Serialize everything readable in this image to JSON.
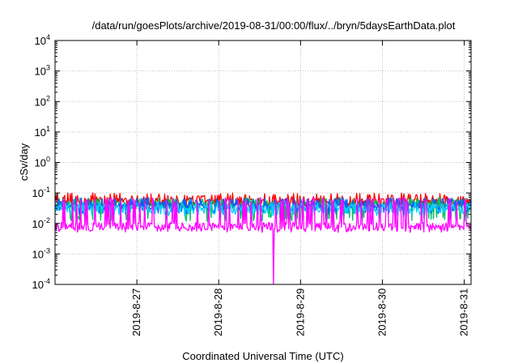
{
  "chart_data": {
    "type": "line",
    "title": "/data/run/goesPlots/archive/2019-08-31/00:00/flux/../bryn/5daysEarthData.plot",
    "xlabel": "Coordinated Universal Time (UTC)",
    "ylabel": "cSv/day",
    "y_scale": "log",
    "ylim": [
      0.0001,
      10000
    ],
    "y_ticks": [
      {
        "base": "10",
        "exp": "4"
      },
      {
        "base": "10",
        "exp": "3"
      },
      {
        "base": "10",
        "exp": "2"
      },
      {
        "base": "10",
        "exp": "1"
      },
      {
        "base": "10",
        "exp": "0"
      },
      {
        "base": "10",
        "exp": "-1"
      },
      {
        "base": "10",
        "exp": "-2"
      },
      {
        "base": "10",
        "exp": "-3"
      },
      {
        "base": "10",
        "exp": "-4"
      }
    ],
    "x_range": [
      "2019-08-26",
      "2019-08-31"
    ],
    "x_ticks": [
      "2019-8-27",
      "2019-8-28",
      "2019-8-29",
      "2019-8-30",
      "2019-8-31"
    ],
    "grid": true,
    "series": [
      {
        "color": "#ff0000",
        "baseline": 0.05,
        "peak": 0.1,
        "low": 0.03
      },
      {
        "color": "#00c060",
        "baseline": 0.04,
        "peak": 0.07,
        "low": 0.012
      },
      {
        "color": "#0060ff",
        "baseline": 0.035,
        "peak": 0.07,
        "low": 0.02
      },
      {
        "color": "#00d0ff",
        "baseline": 0.03,
        "peak": 0.05,
        "low": 0.018
      },
      {
        "color": "#ff00ff",
        "baseline": 0.008,
        "peak": 0.07,
        "low": 0.005,
        "dip_at": "2019-08-28T16:00",
        "dip_value": 0.0001
      }
    ]
  }
}
